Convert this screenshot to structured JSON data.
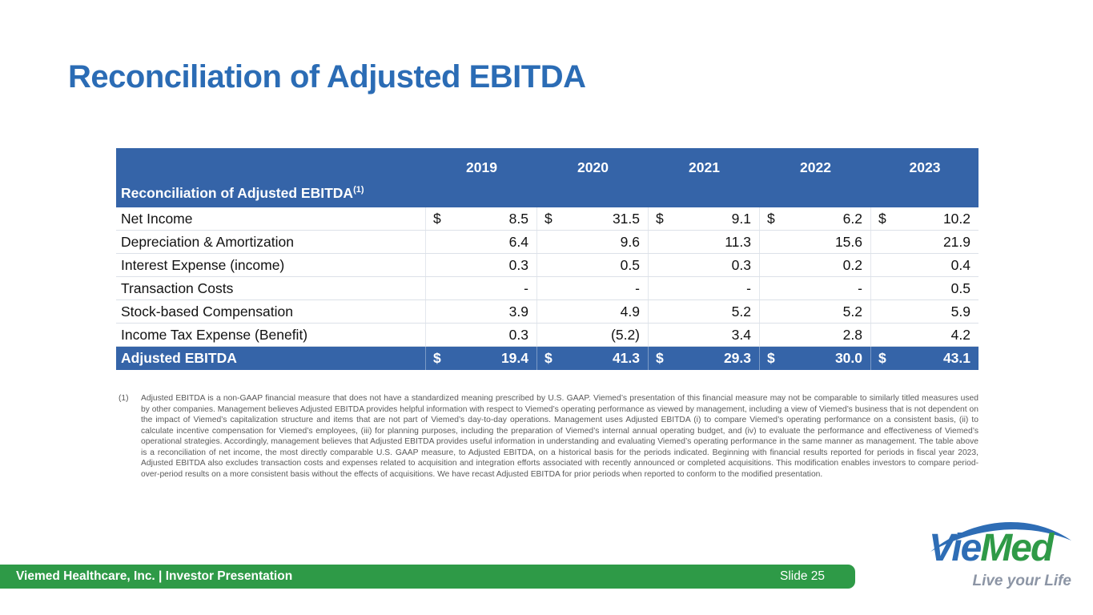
{
  "slide": {
    "title": "Reconciliation of Adjusted EBITDA"
  },
  "table": {
    "currency": "$",
    "header_label": "Reconciliation of Adjusted EBITDA",
    "header_superscript": "(1)",
    "years": [
      "2019",
      "2020",
      "2021",
      "2022",
      "2023"
    ],
    "rows": [
      {
        "label": "Net Income",
        "dollar": true,
        "values": [
          "8.5",
          "31.5",
          "9.1",
          "6.2",
          "10.2"
        ]
      },
      {
        "label": "Depreciation & Amortization",
        "dollar": false,
        "values": [
          "6.4",
          "9.6",
          "11.3",
          "15.6",
          "21.9"
        ]
      },
      {
        "label": "Interest Expense (income)",
        "dollar": false,
        "values": [
          "0.3",
          "0.5",
          "0.3",
          "0.2",
          "0.4"
        ]
      },
      {
        "label": "Transaction Costs",
        "dollar": false,
        "values": [
          "-",
          "-",
          "-",
          "-",
          "0.5"
        ]
      },
      {
        "label": "Stock-based Compensation",
        "dollar": false,
        "values": [
          "3.9",
          "4.9",
          "5.2",
          "5.2",
          "5.9"
        ]
      },
      {
        "label": "Income Tax Expense (Benefit)",
        "dollar": false,
        "values": [
          "0.3",
          "(5.2)",
          "3.4",
          "2.8",
          "4.2"
        ]
      }
    ],
    "total_row": {
      "label": "Adjusted EBITDA",
      "values": [
        "19.4",
        "41.3",
        "29.3",
        "30.0",
        "43.1"
      ]
    }
  },
  "footnote": {
    "marker": "(1)",
    "text": "Adjusted EBITDA is a non-GAAP financial measure that does not have a standardized meaning prescribed by U.S. GAAP. Viemed’s presentation of this financial measure may not be comparable to similarly titled measures used by other companies. Management believes Adjusted EBITDA provides helpful information with respect to Viemed’s operating performance as viewed by management, including a view of Viemed’s business that is not dependent on the impact of Viemed’s capitalization structure and items that are not part of Viemed’s day-to-day operations. Management uses Adjusted EBITDA (i) to compare Viemed’s operating performance on a consistent basis, (ii) to calculate incentive compensation for Viemed’s employees, (iii) for planning purposes, including the preparation of Viemed’s internal annual operating budget, and (iv) to evaluate the performance and effectiveness of Viemed’s operational strategies. Accordingly, management believes that Adjusted EBITDA provides useful information in understanding and evaluating Viemed’s operating performance in the same manner as management. The table above is a reconciliation of net income, the most directly comparable U.S. GAAP measure, to Adjusted EBITDA, on a historical basis for the periods indicated. Beginning with financial results reported for periods in fiscal year 2023, Adjusted EBITDA also excludes transaction costs and expenses related to acquisition and integration efforts associated with recently announced or completed acquisitions. This modification enables investors to compare period-over-period results on a more consistent basis without the effects of acquisitions. We have recast Adjusted EBITDA for prior periods when reported to conform to the modified presentation."
  },
  "footer": {
    "left": "Viemed Healthcare, Inc. | Investor Presentation",
    "slide_label": "Slide 25"
  },
  "logo": {
    "part1": "Vie",
    "part2": "Med",
    "tagline": "Live your Life"
  },
  "colors": {
    "title_blue": "#2B6CB5",
    "table_header_blue": "#3564A8",
    "footer_green": "#2E9A47",
    "logo_blue": "#2E6DB5",
    "logo_green": "#2F9A47",
    "tagline_gray": "#8C95A5",
    "footnote_gray": "#5A5A5A"
  }
}
